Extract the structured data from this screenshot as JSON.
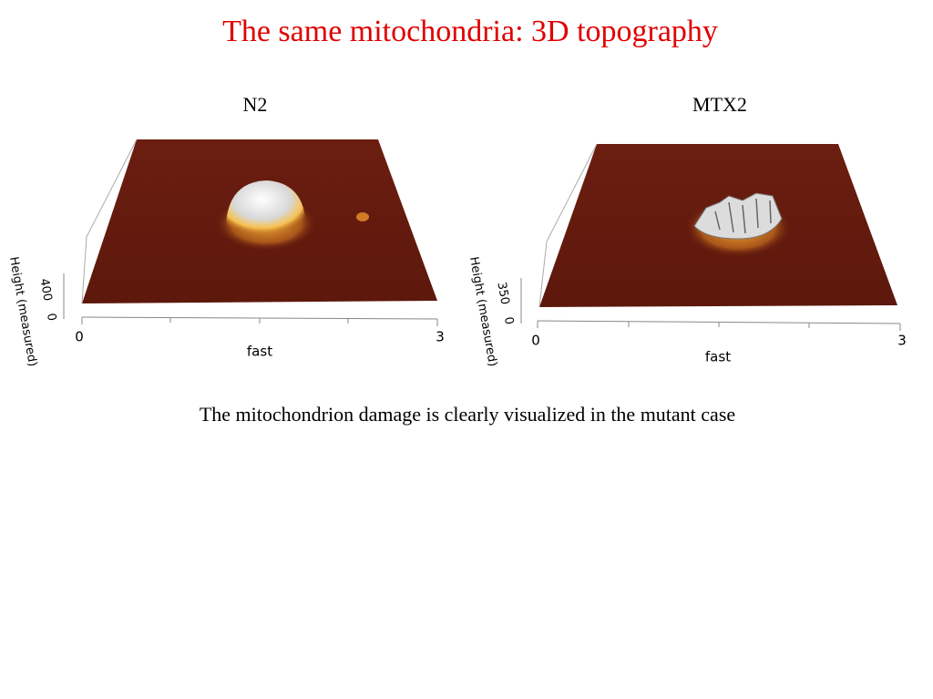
{
  "title": "The same mitochondria: 3D topography",
  "panels": [
    {
      "label": "N2",
      "z_axis_label": "Height (measured)",
      "z_ticks": [
        "400",
        "0"
      ],
      "x_ticks": [
        "0",
        "3"
      ],
      "x_axis_label": "fast"
    },
    {
      "label": "MTX2",
      "z_axis_label": "Height (measured)",
      "z_ticks": [
        "350",
        "0"
      ],
      "x_ticks": [
        "0",
        "3"
      ],
      "x_axis_label": "fast"
    }
  ],
  "caption": "The mitochondrion damage is clearly visualized in the mutant case"
}
